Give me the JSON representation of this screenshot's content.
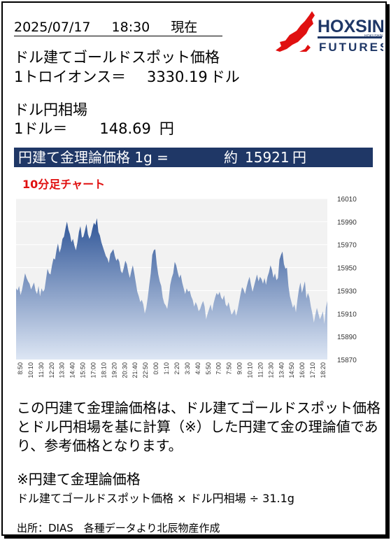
{
  "header": {
    "date": "2025/07/17",
    "time": "18:30",
    "now_label": "現在"
  },
  "logo": {
    "name": "HOXSIN",
    "sub": "FUTURES",
    "tiny": "HOKUSHIN",
    "brand_color": "#e01010",
    "text_color": "#1f3766"
  },
  "spot": {
    "label": "ドル建てゴールドスポット価格",
    "unit_label": "1トロイオンス＝",
    "value": "3330.19",
    "currency": "ドル"
  },
  "fx": {
    "label": "ドル円相場",
    "unit_label": "1ドル＝",
    "value": "148.69",
    "currency": "円"
  },
  "theory": {
    "label": "円建て金理論価格 1g =",
    "approx": "約",
    "value": "15921",
    "currency": "円"
  },
  "chart_title": "10分足チャート",
  "chart_data": {
    "type": "area",
    "ylim": [
      15870,
      16010
    ],
    "yticks": [
      15870,
      15890,
      15910,
      15930,
      15950,
      15970,
      15990,
      16010
    ],
    "xtick_labels": [
      "8:50",
      "10:10",
      "11:30",
      "12:20",
      "13:30",
      "14:40",
      "15:50",
      "17:00",
      "18:10",
      "19:20",
      "20:30",
      "21:40",
      "22:50",
      "0:00",
      "1:10",
      "2:20",
      "3:30",
      "4:40",
      "5:50",
      "7:00",
      "7:50",
      "9:00",
      "10:10",
      "11:20",
      "12:30",
      "13:40",
      "14:50",
      "16:00",
      "17:10",
      "18:20"
    ],
    "values": [
      15932,
      15930,
      15934,
      15926,
      15931,
      15938,
      15945,
      15941,
      15938,
      15936,
      15931,
      15934,
      15937,
      15930,
      15927,
      15934,
      15925,
      15932,
      15929,
      15931,
      15940,
      15949,
      15945,
      15944,
      15952,
      15958,
      15957,
      15965,
      15971,
      15963,
      15967,
      15975,
      15977,
      15984,
      15990,
      15983,
      15979,
      15972,
      15975,
      15969,
      15965,
      15972,
      15981,
      15986,
      15976,
      15977,
      15982,
      15988,
      15979,
      15975,
      15978,
      15984,
      15989,
      15987,
      15993,
      15981,
      15978,
      15972,
      15968,
      15964,
      15960,
      15958,
      15954,
      15962,
      15964,
      15966,
      15960,
      15956,
      15958,
      15955,
      15947,
      15945,
      15950,
      15956,
      15953,
      15946,
      15941,
      15947,
      15952,
      15945,
      15937,
      15929,
      15925,
      15920,
      15922,
      15918,
      15910,
      15915,
      15924,
      15935,
      15945,
      15961,
      15965,
      15966,
      15953,
      15944,
      15938,
      15934,
      15924,
      15919,
      15917,
      15914,
      15923,
      15935,
      15941,
      15945,
      15955,
      15952,
      15946,
      15941,
      15944,
      15937,
      15932,
      15927,
      15932,
      15929,
      15930,
      15925,
      15922,
      15916,
      15920,
      15917,
      15912,
      15914,
      15918,
      15921,
      15916,
      15905,
      15910,
      15914,
      15918,
      15912,
      15919,
      15924,
      15928,
      15926,
      15929,
      15924,
      15922,
      15926,
      15918,
      15916,
      15920,
      15914,
      15909,
      15911,
      15914,
      15908,
      15913,
      15920,
      15927,
      15933,
      15931,
      15927,
      15933,
      15938,
      15942,
      15935,
      15929,
      15934,
      15939,
      15944,
      15938,
      15942,
      15940,
      15936,
      15941,
      15935,
      15942,
      15946,
      15952,
      15948,
      15941,
      15945,
      15939,
      15941,
      15957,
      15961,
      15964,
      15953,
      15949,
      15950,
      15934,
      15925,
      15920,
      15915,
      15918,
      15911,
      15922,
      15931,
      15937,
      15928,
      15933,
      15938,
      15923,
      15928,
      15924,
      15916,
      15910,
      15902,
      15909,
      15915,
      15910,
      15905,
      15908,
      15912,
      15901,
      15915,
      15921
    ],
    "fill_top": "#2f5597",
    "fill_bottom": "#dde6f4"
  },
  "description": "この円建て金理論価格は、ドル建てゴールドスポット価格とドル円相場を基に計算（※）した円建て金の理論値であり、参考価格となります。",
  "note": {
    "title": "※円建て金理論価格",
    "formula": "ドル建てゴールドスポット価格 × ドル円相場 ÷ 31.1g"
  },
  "source": "出所：DIAS　各種データより北辰物産作成"
}
